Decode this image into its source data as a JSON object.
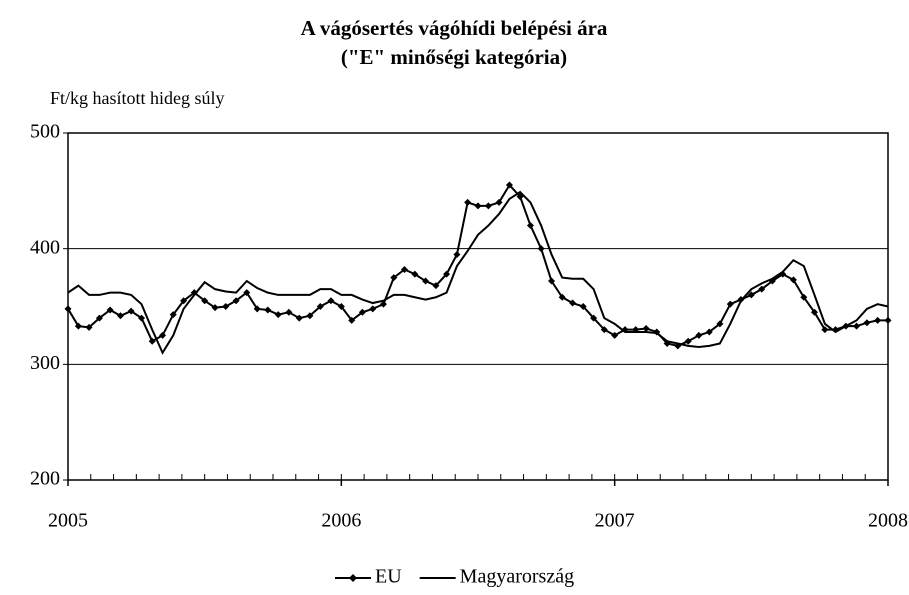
{
  "chart_data": {
    "type": "line",
    "title": "A vágósertés vágóhídi belépési ára",
    "subtitle": "(\"E\" minőségi kategória)",
    "y_label": "Ft/kg hasított hideg súly",
    "x": [
      2005,
      2005.038,
      2005.077,
      2005.115,
      2005.154,
      2005.192,
      2005.231,
      2005.269,
      2005.308,
      2005.346,
      2005.385,
      2005.423,
      2005.462,
      2005.5,
      2005.538,
      2005.577,
      2005.615,
      2005.654,
      2005.692,
      2005.731,
      2005.769,
      2005.808,
      2005.846,
      2005.885,
      2005.923,
      2005.962,
      2006,
      2006.038,
      2006.077,
      2006.115,
      2006.154,
      2006.192,
      2006.231,
      2006.269,
      2006.308,
      2006.346,
      2006.385,
      2006.423,
      2006.462,
      2006.5,
      2006.538,
      2006.577,
      2006.615,
      2006.654,
      2006.692,
      2006.731,
      2006.769,
      2006.808,
      2006.846,
      2006.885,
      2006.923,
      2006.962,
      2007,
      2007.038,
      2007.077,
      2007.115,
      2007.154,
      2007.192,
      2007.231,
      2007.269,
      2007.308,
      2007.346,
      2007.385,
      2007.423,
      2007.462,
      2007.5,
      2007.538,
      2007.577,
      2007.615,
      2007.654,
      2007.692,
      2007.731,
      2007.769,
      2007.808,
      2007.846,
      2007.885,
      2007.923,
      2007.962,
      2008
    ],
    "series": [
      {
        "name": "EU",
        "color": "#000000",
        "marker": "diamond",
        "values": [
          348,
          333,
          332,
          340,
          347,
          342,
          346,
          340,
          320,
          325,
          343,
          355,
          362,
          355,
          349,
          350,
          355,
          362,
          348,
          347,
          343,
          345,
          340,
          342,
          350,
          355,
          350,
          338,
          345,
          348,
          352,
          375,
          382,
          378,
          372,
          368,
          378,
          395,
          440,
          437,
          437,
          440,
          455,
          445,
          420,
          400,
          372,
          358,
          353,
          350,
          340,
          330,
          325,
          330,
          330,
          331,
          328,
          318,
          316,
          320,
          325,
          328,
          335,
          352,
          356,
          360,
          365,
          372,
          378,
          373,
          358,
          345,
          330,
          330,
          333,
          333,
          336,
          338,
          338
        ]
      },
      {
        "name": "Magyarország",
        "color": "#000000",
        "values": [
          362,
          368,
          360,
          360,
          362,
          362,
          360,
          352,
          330,
          310,
          325,
          348,
          360,
          371,
          365,
          363,
          362,
          372,
          366,
          362,
          360,
          360,
          360,
          360,
          365,
          365,
          360,
          360,
          356,
          353,
          355,
          360,
          360,
          358,
          356,
          358,
          362,
          385,
          398,
          412,
          420,
          430,
          443,
          449,
          440,
          420,
          395,
          375,
          374,
          374,
          365,
          340,
          335,
          328,
          328,
          328,
          327,
          320,
          318,
          316,
          315,
          316,
          318,
          335,
          355,
          365,
          370,
          374,
          380,
          390,
          385,
          360,
          335,
          328,
          333,
          338,
          348,
          352,
          350
        ]
      }
    ],
    "xlim": [
      2005,
      2008
    ],
    "xticks": [
      2005,
      2006,
      2007,
      2008
    ],
    "ylim": [
      200,
      500
    ],
    "yticks": [
      200,
      300,
      400,
      500
    ],
    "grid": true,
    "legend": "bottom"
  }
}
